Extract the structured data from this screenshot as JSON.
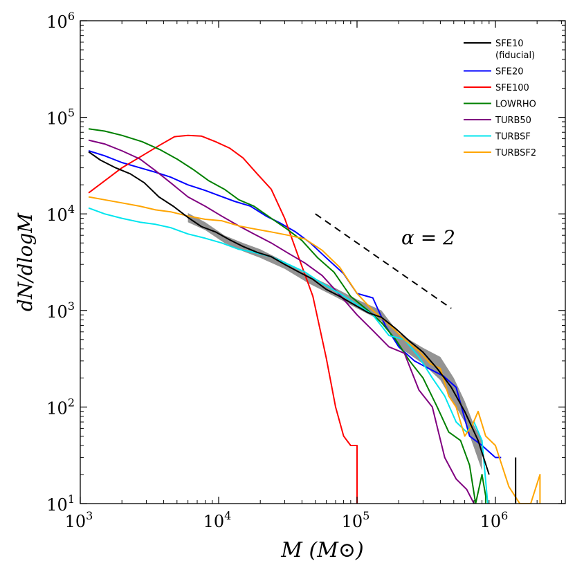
{
  "chart_data": {
    "type": "line",
    "title": "",
    "xlabel": "M (M⊙)",
    "ylabel": "dN/dlogM",
    "xscale": "log",
    "yscale": "log",
    "xlim": [
      1000,
      3200000
    ],
    "ylim": [
      10,
      1000000
    ],
    "x_ticks": [
      {
        "value": 1000,
        "base": "10",
        "exp": "3"
      },
      {
        "value": 10000,
        "base": "10",
        "exp": "4"
      },
      {
        "value": 100000,
        "base": "10",
        "exp": "5"
      },
      {
        "value": 1000000,
        "base": "10",
        "exp": "6"
      }
    ],
    "y_ticks": [
      {
        "value": 10,
        "base": "10",
        "exp": "1"
      },
      {
        "value": 100,
        "base": "10",
        "exp": "2"
      },
      {
        "value": 1000,
        "base": "10",
        "exp": "3"
      },
      {
        "value": 10000,
        "base": "10",
        "exp": "4"
      },
      {
        "value": 100000,
        "base": "10",
        "exp": "5"
      },
      {
        "value": 1000000,
        "base": "10",
        "exp": "6"
      }
    ],
    "legend_position": "top-right",
    "annotation": {
      "label": "α = 2",
      "slope_line": {
        "x": [
          50000,
          480000
        ],
        "y": [
          10000,
          1050
        ]
      }
    },
    "shaded_band": {
      "name": "SFE10 scatter",
      "color": "#808080",
      "x": [
        6000,
        8000,
        11000,
        15000,
        20000,
        30000,
        45000,
        70000,
        100000,
        150000,
        200000,
        300000,
        400000,
        500000,
        600000,
        700000,
        800000
      ],
      "lower": [
        8200,
        6800,
        5000,
        4100,
        3500,
        2700,
        1900,
        1380,
        1050,
        780,
        420,
        280,
        190,
        110,
        70,
        38,
        22
      ],
      "upper": [
        10200,
        8200,
        6000,
        5000,
        4300,
        3200,
        2300,
        1700,
        1300,
        1000,
        580,
        410,
        330,
        200,
        115,
        65,
        45
      ]
    },
    "series": [
      {
        "name": "SFE10",
        "name2": "(fiducial)",
        "color": "#000000",
        "x": [
          1150,
          1400,
          1800,
          2300,
          2900,
          3700,
          4700,
          6000,
          7500,
          9500,
          12000,
          15000,
          19000,
          24000,
          30000,
          38000,
          48000,
          60000,
          75000,
          95000,
          120000,
          150000,
          190000,
          240000,
          300000,
          380000,
          480000,
          600000,
          750000,
          900000
        ],
        "y": [
          44000,
          36000,
          30000,
          26000,
          21000,
          15000,
          12000,
          9200,
          7400,
          6500,
          5400,
          4600,
          4000,
          3600,
          3000,
          2500,
          2100,
          1650,
          1400,
          1150,
          950,
          850,
          650,
          480,
          370,
          250,
          160,
          90,
          45,
          20
        ]
      },
      {
        "name": "SFE20",
        "color": "#0000ff",
        "x": [
          1150,
          1500,
          2000,
          2700,
          3500,
          4500,
          6000,
          8000,
          10000,
          13000,
          17000,
          22000,
          28000,
          36000,
          46000,
          60000,
          80000,
          100000,
          130000,
          160000,
          200000,
          260000,
          330000,
          420000,
          520000,
          650000,
          800000,
          1000000,
          1100000
        ],
        "y": [
          45000,
          40000,
          34000,
          30000,
          27000,
          24000,
          20000,
          17500,
          15500,
          13500,
          12000,
          9500,
          8000,
          6500,
          5000,
          3500,
          2400,
          1500,
          1350,
          700,
          420,
          300,
          250,
          210,
          160,
          50,
          40,
          30,
          30
        ]
      },
      {
        "name": "SFE100",
        "color": "#ff0000",
        "x": [
          1150,
          1500,
          2000,
          2800,
          3800,
          4800,
          6000,
          7500,
          9500,
          12000,
          15000,
          19000,
          24000,
          30000,
          38000,
          48000,
          60000,
          70000,
          80000,
          90000,
          100000,
          100000
        ],
        "y": [
          16500,
          22000,
          30000,
          40000,
          52000,
          63000,
          65000,
          64000,
          56000,
          48000,
          38000,
          26000,
          18000,
          9000,
          3500,
          1400,
          320,
          100,
          50,
          40,
          40,
          10
        ]
      },
      {
        "name": "LOWRHO",
        "color": "#008000",
        "x": [
          1150,
          1500,
          2000,
          2800,
          3800,
          5000,
          6500,
          8500,
          11000,
          14000,
          18000,
          24000,
          31000,
          40000,
          52000,
          68000,
          90000,
          120000,
          150000,
          190000,
          240000,
          300000,
          380000,
          460000,
          560000,
          650000,
          720000,
          800000,
          850000,
          850000
        ],
        "y": [
          76000,
          72000,
          65000,
          56000,
          46000,
          37000,
          29000,
          22000,
          18000,
          14000,
          12000,
          9000,
          7000,
          5300,
          3500,
          2500,
          1400,
          1000,
          750,
          500,
          300,
          200,
          100,
          55,
          45,
          25,
          10,
          20,
          12,
          10
        ]
      },
      {
        "name": "TURB50",
        "color": "#800080",
        "x": [
          1150,
          1500,
          2000,
          2700,
          3500,
          4500,
          6000,
          8000,
          10500,
          14000,
          18000,
          24000,
          32000,
          42000,
          56000,
          75000,
          100000,
          130000,
          170000,
          220000,
          280000,
          350000,
          430000,
          520000,
          620000,
          700000
        ],
        "y": [
          58000,
          53000,
          45000,
          37000,
          28000,
          21000,
          15000,
          12000,
          9500,
          7500,
          6200,
          5000,
          3900,
          3100,
          2300,
          1450,
          900,
          620,
          420,
          360,
          150,
          100,
          30,
          18,
          14,
          10
        ]
      },
      {
        "name": "TURBSF",
        "color": "#00e5ee",
        "x": [
          1150,
          1500,
          2000,
          2700,
          3500,
          4500,
          6000,
          8000,
          10500,
          14000,
          18000,
          24000,
          32000,
          42000,
          56000,
          75000,
          100000,
          130000,
          170000,
          220000,
          280000,
          350000,
          430000,
          520000,
          620000,
          700000,
          800000,
          880000
        ],
        "y": [
          11500,
          10000,
          9000,
          8200,
          7800,
          7200,
          6200,
          5600,
          5000,
          4300,
          4000,
          3600,
          3000,
          2500,
          1900,
          1500,
          1150,
          900,
          550,
          500,
          330,
          200,
          130,
          70,
          55,
          70,
          45,
          10
        ]
      },
      {
        "name": "TURBSF2",
        "color": "#ffa500",
        "x": [
          1150,
          1500,
          2000,
          2700,
          3500,
          4500,
          6000,
          8000,
          10500,
          14000,
          18000,
          24000,
          32000,
          42000,
          56000,
          75000,
          100000,
          130000,
          170000,
          220000,
          280000,
          340000,
          400000,
          460000,
          520000,
          600000,
          680000,
          750000,
          850000,
          1000000,
          1250000,
          1500000,
          1800000,
          2100000,
          2100000
        ],
        "y": [
          15000,
          14000,
          13000,
          12000,
          11000,
          10500,
          9500,
          8800,
          8500,
          7500,
          7000,
          6500,
          6000,
          5500,
          4200,
          2800,
          1500,
          1000,
          720,
          500,
          380,
          280,
          250,
          130,
          100,
          50,
          65,
          90,
          50,
          40,
          15,
          10,
          10,
          20,
          10
        ]
      }
    ],
    "vertical_marks": [
      {
        "x": 1400000,
        "y": [
          10,
          30
        ],
        "color": "#000000"
      }
    ]
  }
}
